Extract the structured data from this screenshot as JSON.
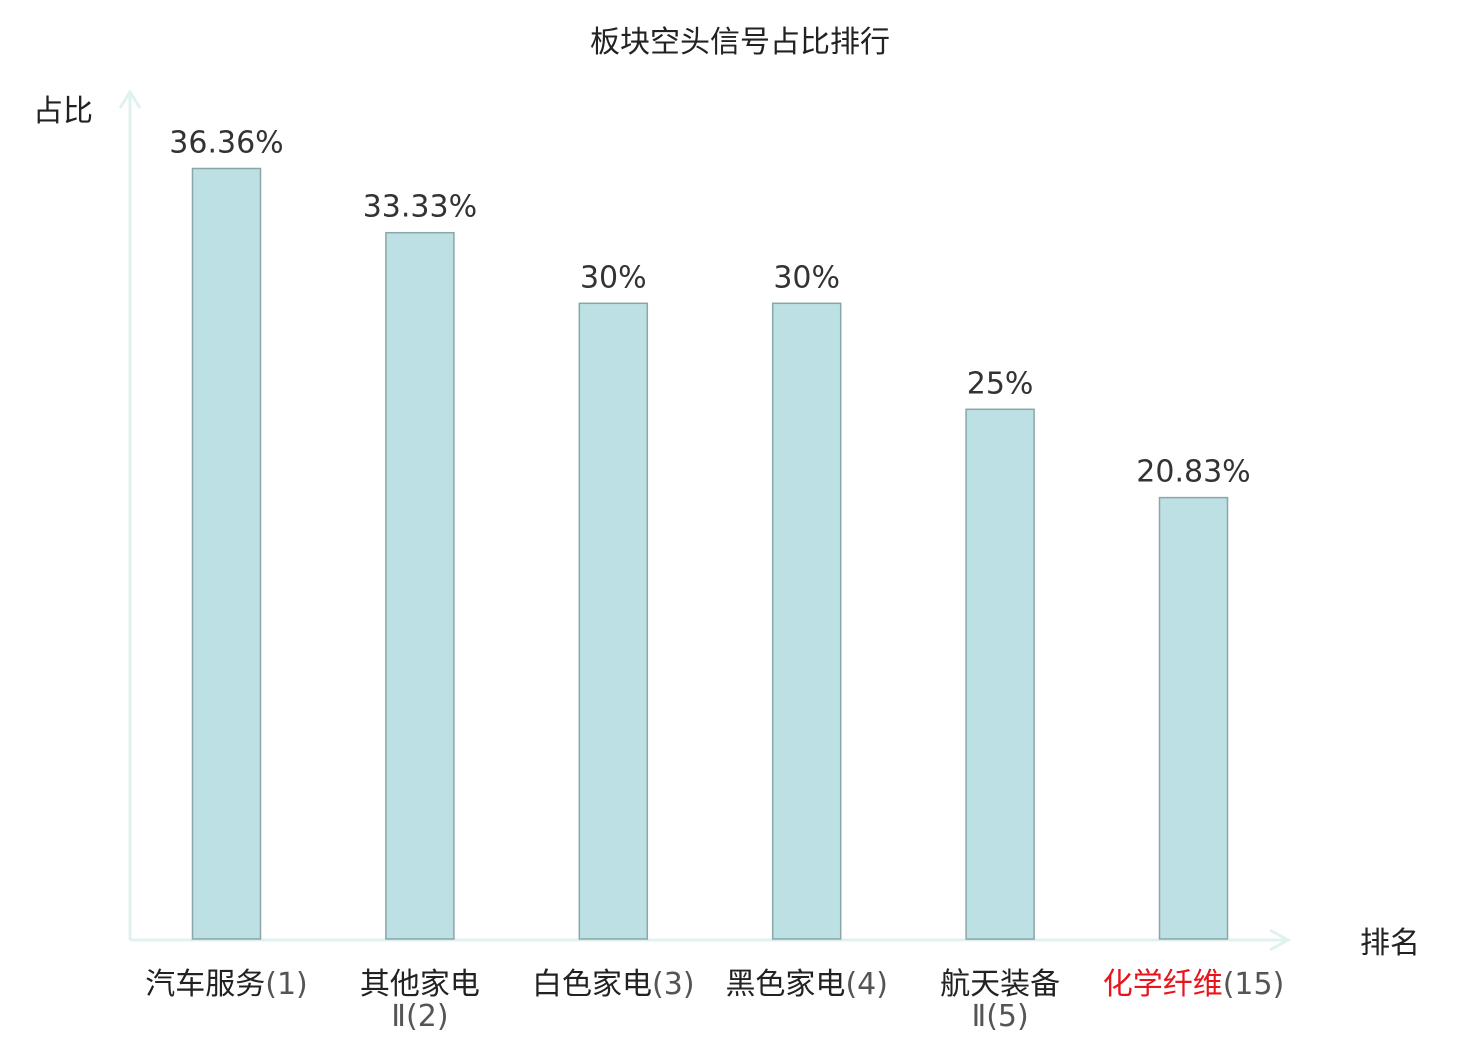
{
  "chart_data": {
    "type": "bar",
    "title": "板块空头信号占比排行",
    "xlabel": "排名",
    "ylabel": "占比",
    "categories": [
      {
        "name": "汽车服务",
        "rank": "(1)",
        "highlight": false
      },
      {
        "name": "其他家电",
        "rank": "Ⅱ(2)",
        "highlight": false
      },
      {
        "name": "白色家电",
        "rank": "(3)",
        "highlight": false
      },
      {
        "name": "黑色家电",
        "rank": "(4)",
        "highlight": false
      },
      {
        "name": "航天装备",
        "rank": "Ⅱ(5)",
        "highlight": false
      },
      {
        "name": "化学纤维",
        "rank": "(15)",
        "highlight": true
      }
    ],
    "values": [
      36.36,
      33.33,
      30,
      30,
      25,
      20.83
    ],
    "value_labels": [
      "36.36%",
      "33.33%",
      "30%",
      "30%",
      "25%",
      "20.83%"
    ],
    "ylim": [
      0,
      40
    ],
    "grid": false,
    "colors": {
      "bar_fill": "#bce0e3",
      "bar_stroke": "#8aa6a8",
      "axis": "#e0f2f0",
      "highlight_text": "#e8141c"
    }
  }
}
